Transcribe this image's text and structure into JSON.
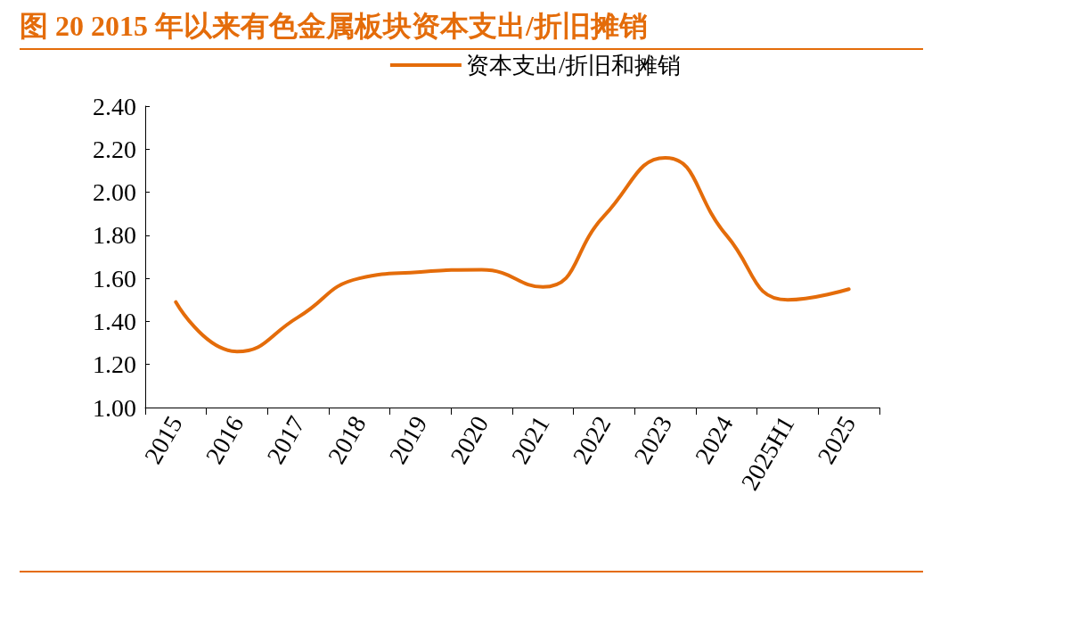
{
  "chart_data": {
    "type": "line",
    "title": "图 20 2015 年以来有色金属板块资本支出/折旧摊销",
    "categories": [
      "2015",
      "2016",
      "2017",
      "2018",
      "2019",
      "2020",
      "2021",
      "2022",
      "2023",
      "2024",
      "2025H1",
      "2025"
    ],
    "series": [
      {
        "name": "资本支出/折旧和摊销",
        "color": "#e46c0a",
        "values": [
          1.49,
          1.26,
          1.42,
          1.6,
          1.63,
          1.64,
          1.56,
          1.89,
          2.16,
          1.8,
          1.5,
          1.55
        ]
      }
    ],
    "ylim": [
      1,
      2.4
    ],
    "yticks": [
      {
        "value": 1,
        "label": "1.00"
      },
      {
        "value": 1.2,
        "label": "1.20"
      },
      {
        "value": 1.4,
        "label": "1.40"
      },
      {
        "value": 1.6,
        "label": "1.60"
      },
      {
        "value": 1.8,
        "label": "1.80"
      },
      {
        "value": 2,
        "label": "2.00"
      },
      {
        "value": 2.2,
        "label": "2.20"
      },
      {
        "value": 2.4,
        "label": "2.40"
      }
    ],
    "grid": false,
    "legend": "top",
    "marker": "none",
    "line_style": "solid"
  }
}
